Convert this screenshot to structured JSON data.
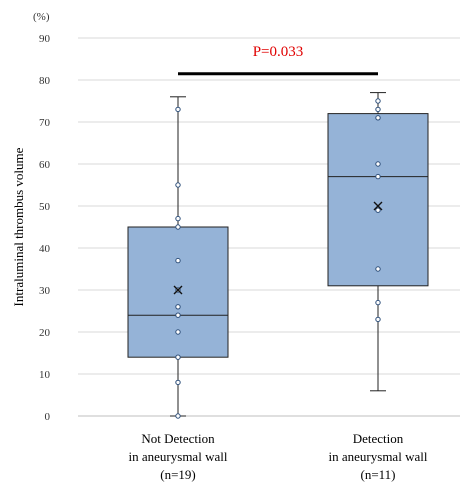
{
  "chart_data": {
    "type": "box",
    "unit_label": "(%)",
    "ylabel": "Intraluminal thrombus volume",
    "xlabel": "",
    "ylim": [
      0,
      90
    ],
    "yticks": [
      0,
      10,
      20,
      30,
      40,
      50,
      60,
      70,
      80,
      90
    ],
    "grid": true,
    "box_color": "#95b3d7",
    "significance": {
      "label": "P=0.033",
      "color": "#e00000",
      "y": 81.5
    },
    "groups": [
      {
        "label_lines": [
          "Not Detection",
          "in aneurysmal wall",
          "(n=19)"
        ],
        "min": 0,
        "q1": 14,
        "median": 24,
        "q3": 45,
        "max": 76,
        "mean": 30,
        "points": [
          0,
          8,
          14,
          20,
          24,
          26,
          30,
          37,
          45,
          47,
          55,
          73
        ]
      },
      {
        "label_lines": [
          "Detection",
          "in aneurysmal wall",
          "(n=11)"
        ],
        "min": 6,
        "q1": 31,
        "median": 57,
        "q3": 72,
        "max": 77,
        "mean": 50,
        "points": [
          23,
          27,
          35,
          49,
          57,
          60,
          71,
          73,
          75
        ]
      }
    ]
  }
}
